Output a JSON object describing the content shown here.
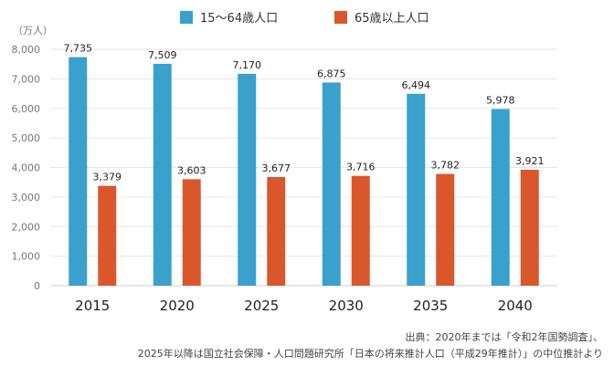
{
  "chart_data": {
    "type": "bar",
    "categories": [
      "2015",
      "2020",
      "2025",
      "2030",
      "2035",
      "2040"
    ],
    "series": [
      {
        "name": "15〜64歳人口",
        "color": "#3aa0cc",
        "values": [
          7735,
          7509,
          7170,
          6875,
          6494,
          5978
        ]
      },
      {
        "name": "65歳以上人口",
        "color": "#d9572b",
        "values": [
          3379,
          3603,
          3677,
          3716,
          3782,
          3921
        ]
      }
    ],
    "y_ticks": [
      "0",
      "1,000",
      "2,000",
      "3,000",
      "4,000",
      "5,000",
      "6,000",
      "7,000",
      "8,000"
    ],
    "ylim": [
      0,
      8000
    ],
    "ylabel": "（万人）",
    "grid": true,
    "legend_position": "top"
  },
  "source": {
    "line1": "出典：2020年までは「令和2年国勢調査」、",
    "line2": "2025年以降は国立社会保障・人口問題研究所「日本の将来推計人口（平成29年推計）」の中位推計より"
  }
}
